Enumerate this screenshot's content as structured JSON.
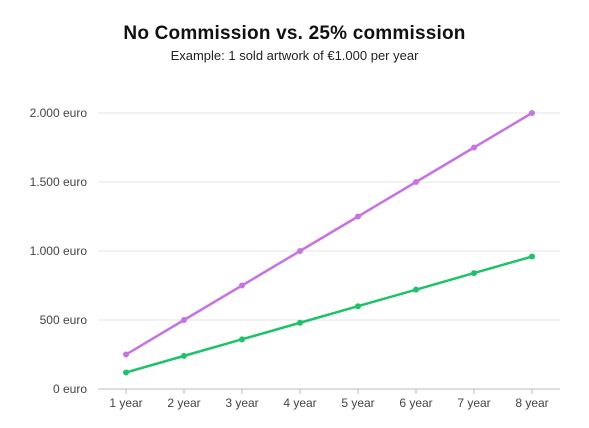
{
  "chart_data": {
    "type": "line",
    "title": "No Commission vs. 25% commission",
    "subtitle": "Example: 1 sold artwork of €1.000 per year",
    "xlabel": "",
    "ylabel": "",
    "categories": [
      "1 year",
      "2 year",
      "3 year",
      "4 year",
      "5 year",
      "6 year",
      "7 year",
      "8 year"
    ],
    "ylim": [
      0,
      2000
    ],
    "yticks": [
      0,
      500,
      1000,
      1500,
      2000
    ],
    "ytick_labels": [
      "0 euro",
      "500 euro",
      "1.000 euro",
      "1.500 euro",
      "2.000 euro"
    ],
    "grid": true,
    "legend": "none",
    "series": [
      {
        "values": [
          250,
          500,
          750,
          1000,
          1250,
          1500,
          1750,
          2000
        ],
        "color": "#c774e0"
      },
      {
        "values": [
          120,
          240,
          360,
          480,
          600,
          720,
          840,
          960
        ],
        "color": "#1ec26a"
      }
    ]
  }
}
